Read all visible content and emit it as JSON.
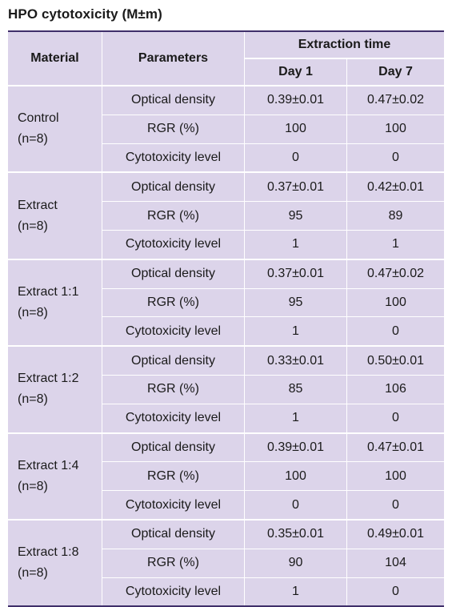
{
  "title": "HPO cytotoxicity (M±m)",
  "header": {
    "material": "Material",
    "parameters": "Parameters",
    "extraction_time": "Extraction time",
    "day1": "Day 1",
    "day7": "Day 7"
  },
  "groups": [
    {
      "name": "Control",
      "n": "(n=8)",
      "rows": [
        {
          "param": "Optical density",
          "day1": "0.39±0.01",
          "day7": "0.47±0.02"
        },
        {
          "param": "RGR (%)",
          "day1": "100",
          "day7": "100"
        },
        {
          "param": "Cytotoxicity level",
          "day1": "0",
          "day7": "0"
        }
      ]
    },
    {
      "name": "Extract",
      "n": "(n=8)",
      "rows": [
        {
          "param": "Optical density",
          "day1": "0.37±0.01",
          "day7": "0.42±0.01"
        },
        {
          "param": "RGR (%)",
          "day1": "95",
          "day7": "89"
        },
        {
          "param": "Cytotoxicity level",
          "day1": "1",
          "day7": "1"
        }
      ]
    },
    {
      "name": "Extract 1:1",
      "n": "(n=8)",
      "rows": [
        {
          "param": "Optical density",
          "day1": "0.37±0.01",
          "day7": "0.47±0.02"
        },
        {
          "param": "RGR (%)",
          "day1": "95",
          "day7": "100"
        },
        {
          "param": "Cytotoxicity level",
          "day1": "1",
          "day7": "0"
        }
      ]
    },
    {
      "name": "Extract 1:2",
      "n": "(n=8)",
      "rows": [
        {
          "param": "Optical density",
          "day1": "0.33±0.01",
          "day7": "0.50±0.01"
        },
        {
          "param": "RGR (%)",
          "day1": "85",
          "day7": "106"
        },
        {
          "param": "Cytotoxicity level",
          "day1": "1",
          "day7": "0"
        }
      ]
    },
    {
      "name": "Extract 1:4",
      "n": "(n=8)",
      "rows": [
        {
          "param": "Optical density",
          "day1": "0.39±0.01",
          "day7": "0.47±0.01"
        },
        {
          "param": "RGR (%)",
          "day1": "100",
          "day7": "100"
        },
        {
          "param": "Cytotoxicity level",
          "day1": "0",
          "day7": "0"
        }
      ]
    },
    {
      "name": "Extract 1:8",
      "n": "(n=8)",
      "rows": [
        {
          "param": "Optical density",
          "day1": "0.35±0.01",
          "day7": "0.49±0.01"
        },
        {
          "param": "RGR (%)",
          "day1": "90",
          "day7": "104"
        },
        {
          "param": "Cytotoxicity level",
          "day1": "1",
          "day7": "0"
        }
      ]
    }
  ]
}
